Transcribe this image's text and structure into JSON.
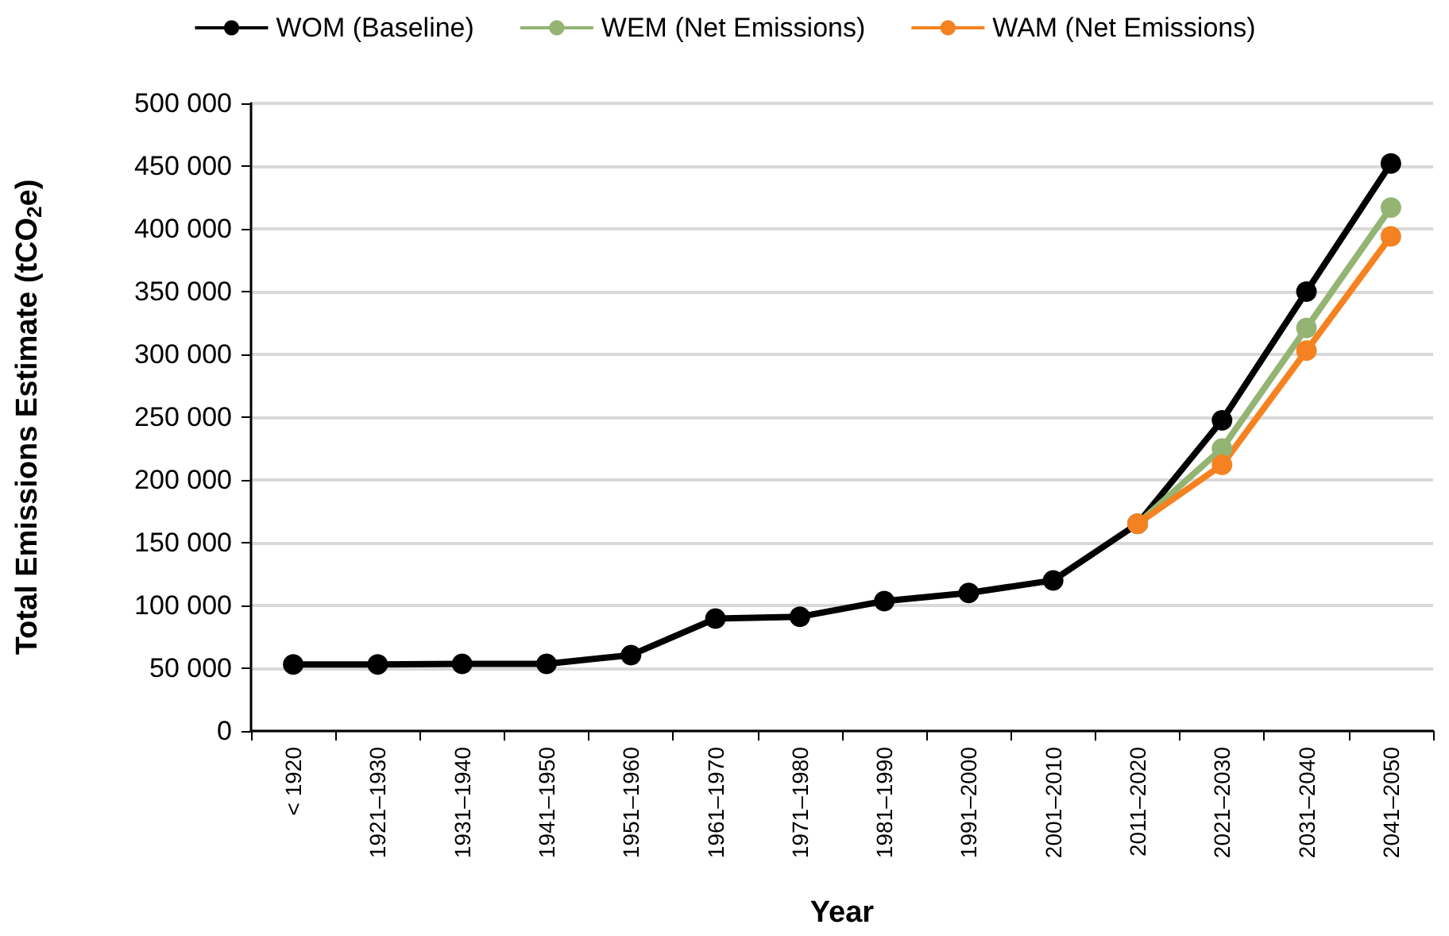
{
  "chart_data": {
    "type": "line",
    "xlabel": "Year",
    "ylabel": "Total Emissions Estimate (tCO$_{2}$e)",
    "categories": [
      "< 1920",
      "1921–1930",
      "1931–1940",
      "1941–1950",
      "1951–1960",
      "1961–1970",
      "1971–1980",
      "1981–1990",
      "1991–2000",
      "2001–2010",
      "2011–2020",
      "2021–2030",
      "2031–2040",
      "2041–2050"
    ],
    "series": [
      {
        "name": "WOM (Baseline)",
        "color": "#000000",
        "values": [
          53000,
          53000,
          53500,
          53500,
          60500,
          89500,
          91000,
          103500,
          110000,
          120000,
          165000,
          247500,
          350000,
          452000
        ]
      },
      {
        "name": "WEM (Net Emissions)",
        "color": "#93b473",
        "values": [
          null,
          null,
          null,
          null,
          null,
          null,
          null,
          null,
          null,
          null,
          165000,
          225000,
          321000,
          417000
        ]
      },
      {
        "name": "WAM (Net Emissions)",
        "color": "#f58220",
        "values": [
          null,
          null,
          null,
          null,
          null,
          null,
          null,
          null,
          null,
          null,
          165000,
          212000,
          303000,
          394000
        ]
      }
    ],
    "ylim": [
      0,
      500000
    ],
    "yticks": [
      0,
      {
        "value": 50000,
        "label": "50 000"
      },
      {
        "value": 100000,
        "label": "100 000"
      },
      {
        "value": 150000,
        "label": "150 000"
      },
      {
        "value": 200000,
        "label": "200 000"
      },
      {
        "value": 250000,
        "label": "250 000"
      },
      {
        "value": 300000,
        "label": "300 000"
      },
      {
        "value": 350000,
        "label": "350 000"
      },
      {
        "value": 400000,
        "label": "400 000"
      },
      {
        "value": 450000,
        "label": "450 000"
      },
      {
        "value": 500000,
        "label": "500 000"
      }
    ],
    "grid": "y",
    "legend": "top",
    "marker": "circle",
    "line_style": "solid"
  }
}
